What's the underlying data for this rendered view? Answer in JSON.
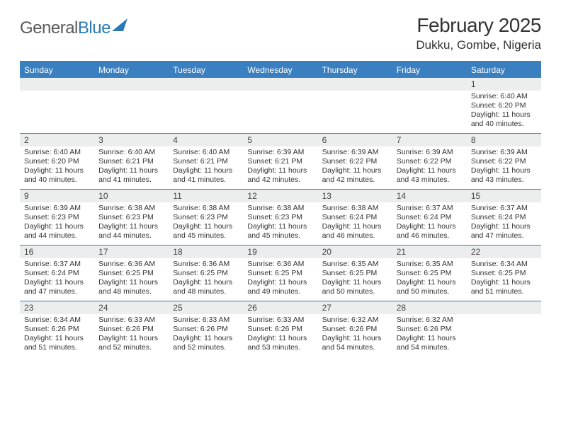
{
  "logo": {
    "part1": "General",
    "part2": "Blue"
  },
  "title": {
    "month": "February 2025",
    "location": "Dukku, Gombe, Nigeria"
  },
  "colors": {
    "header_blue": "#3a7fbf",
    "row_gray": "#eceded",
    "text": "#333333",
    "logo_gray": "#5a5a5a",
    "logo_blue": "#2a7ab8",
    "background": "#ffffff"
  },
  "typography": {
    "title_fontsize": 28,
    "location_fontsize": 17,
    "weekday_fontsize": 12,
    "daynum_fontsize": 12,
    "body_fontsize": 10.5
  },
  "weekdays": [
    "Sunday",
    "Monday",
    "Tuesday",
    "Wednesday",
    "Thursday",
    "Friday",
    "Saturday"
  ],
  "weeks": [
    [
      {
        "n": "",
        "sr": "",
        "ss": "",
        "dl": ""
      },
      {
        "n": "",
        "sr": "",
        "ss": "",
        "dl": ""
      },
      {
        "n": "",
        "sr": "",
        "ss": "",
        "dl": ""
      },
      {
        "n": "",
        "sr": "",
        "ss": "",
        "dl": ""
      },
      {
        "n": "",
        "sr": "",
        "ss": "",
        "dl": ""
      },
      {
        "n": "",
        "sr": "",
        "ss": "",
        "dl": ""
      },
      {
        "n": "1",
        "sr": "Sunrise: 6:40 AM",
        "ss": "Sunset: 6:20 PM",
        "dl": "Daylight: 11 hours and 40 minutes."
      }
    ],
    [
      {
        "n": "2",
        "sr": "Sunrise: 6:40 AM",
        "ss": "Sunset: 6:20 PM",
        "dl": "Daylight: 11 hours and 40 minutes."
      },
      {
        "n": "3",
        "sr": "Sunrise: 6:40 AM",
        "ss": "Sunset: 6:21 PM",
        "dl": "Daylight: 11 hours and 41 minutes."
      },
      {
        "n": "4",
        "sr": "Sunrise: 6:40 AM",
        "ss": "Sunset: 6:21 PM",
        "dl": "Daylight: 11 hours and 41 minutes."
      },
      {
        "n": "5",
        "sr": "Sunrise: 6:39 AM",
        "ss": "Sunset: 6:21 PM",
        "dl": "Daylight: 11 hours and 42 minutes."
      },
      {
        "n": "6",
        "sr": "Sunrise: 6:39 AM",
        "ss": "Sunset: 6:22 PM",
        "dl": "Daylight: 11 hours and 42 minutes."
      },
      {
        "n": "7",
        "sr": "Sunrise: 6:39 AM",
        "ss": "Sunset: 6:22 PM",
        "dl": "Daylight: 11 hours and 43 minutes."
      },
      {
        "n": "8",
        "sr": "Sunrise: 6:39 AM",
        "ss": "Sunset: 6:22 PM",
        "dl": "Daylight: 11 hours and 43 minutes."
      }
    ],
    [
      {
        "n": "9",
        "sr": "Sunrise: 6:39 AM",
        "ss": "Sunset: 6:23 PM",
        "dl": "Daylight: 11 hours and 44 minutes."
      },
      {
        "n": "10",
        "sr": "Sunrise: 6:38 AM",
        "ss": "Sunset: 6:23 PM",
        "dl": "Daylight: 11 hours and 44 minutes."
      },
      {
        "n": "11",
        "sr": "Sunrise: 6:38 AM",
        "ss": "Sunset: 6:23 PM",
        "dl": "Daylight: 11 hours and 45 minutes."
      },
      {
        "n": "12",
        "sr": "Sunrise: 6:38 AM",
        "ss": "Sunset: 6:23 PM",
        "dl": "Daylight: 11 hours and 45 minutes."
      },
      {
        "n": "13",
        "sr": "Sunrise: 6:38 AM",
        "ss": "Sunset: 6:24 PM",
        "dl": "Daylight: 11 hours and 46 minutes."
      },
      {
        "n": "14",
        "sr": "Sunrise: 6:37 AM",
        "ss": "Sunset: 6:24 PM",
        "dl": "Daylight: 11 hours and 46 minutes."
      },
      {
        "n": "15",
        "sr": "Sunrise: 6:37 AM",
        "ss": "Sunset: 6:24 PM",
        "dl": "Daylight: 11 hours and 47 minutes."
      }
    ],
    [
      {
        "n": "16",
        "sr": "Sunrise: 6:37 AM",
        "ss": "Sunset: 6:24 PM",
        "dl": "Daylight: 11 hours and 47 minutes."
      },
      {
        "n": "17",
        "sr": "Sunrise: 6:36 AM",
        "ss": "Sunset: 6:25 PM",
        "dl": "Daylight: 11 hours and 48 minutes."
      },
      {
        "n": "18",
        "sr": "Sunrise: 6:36 AM",
        "ss": "Sunset: 6:25 PM",
        "dl": "Daylight: 11 hours and 48 minutes."
      },
      {
        "n": "19",
        "sr": "Sunrise: 6:36 AM",
        "ss": "Sunset: 6:25 PM",
        "dl": "Daylight: 11 hours and 49 minutes."
      },
      {
        "n": "20",
        "sr": "Sunrise: 6:35 AM",
        "ss": "Sunset: 6:25 PM",
        "dl": "Daylight: 11 hours and 50 minutes."
      },
      {
        "n": "21",
        "sr": "Sunrise: 6:35 AM",
        "ss": "Sunset: 6:25 PM",
        "dl": "Daylight: 11 hours and 50 minutes."
      },
      {
        "n": "22",
        "sr": "Sunrise: 6:34 AM",
        "ss": "Sunset: 6:25 PM",
        "dl": "Daylight: 11 hours and 51 minutes."
      }
    ],
    [
      {
        "n": "23",
        "sr": "Sunrise: 6:34 AM",
        "ss": "Sunset: 6:26 PM",
        "dl": "Daylight: 11 hours and 51 minutes."
      },
      {
        "n": "24",
        "sr": "Sunrise: 6:33 AM",
        "ss": "Sunset: 6:26 PM",
        "dl": "Daylight: 11 hours and 52 minutes."
      },
      {
        "n": "25",
        "sr": "Sunrise: 6:33 AM",
        "ss": "Sunset: 6:26 PM",
        "dl": "Daylight: 11 hours and 52 minutes."
      },
      {
        "n": "26",
        "sr": "Sunrise: 6:33 AM",
        "ss": "Sunset: 6:26 PM",
        "dl": "Daylight: 11 hours and 53 minutes."
      },
      {
        "n": "27",
        "sr": "Sunrise: 6:32 AM",
        "ss": "Sunset: 6:26 PM",
        "dl": "Daylight: 11 hours and 54 minutes."
      },
      {
        "n": "28",
        "sr": "Sunrise: 6:32 AM",
        "ss": "Sunset: 6:26 PM",
        "dl": "Daylight: 11 hours and 54 minutes."
      },
      {
        "n": "",
        "sr": "",
        "ss": "",
        "dl": ""
      }
    ]
  ]
}
